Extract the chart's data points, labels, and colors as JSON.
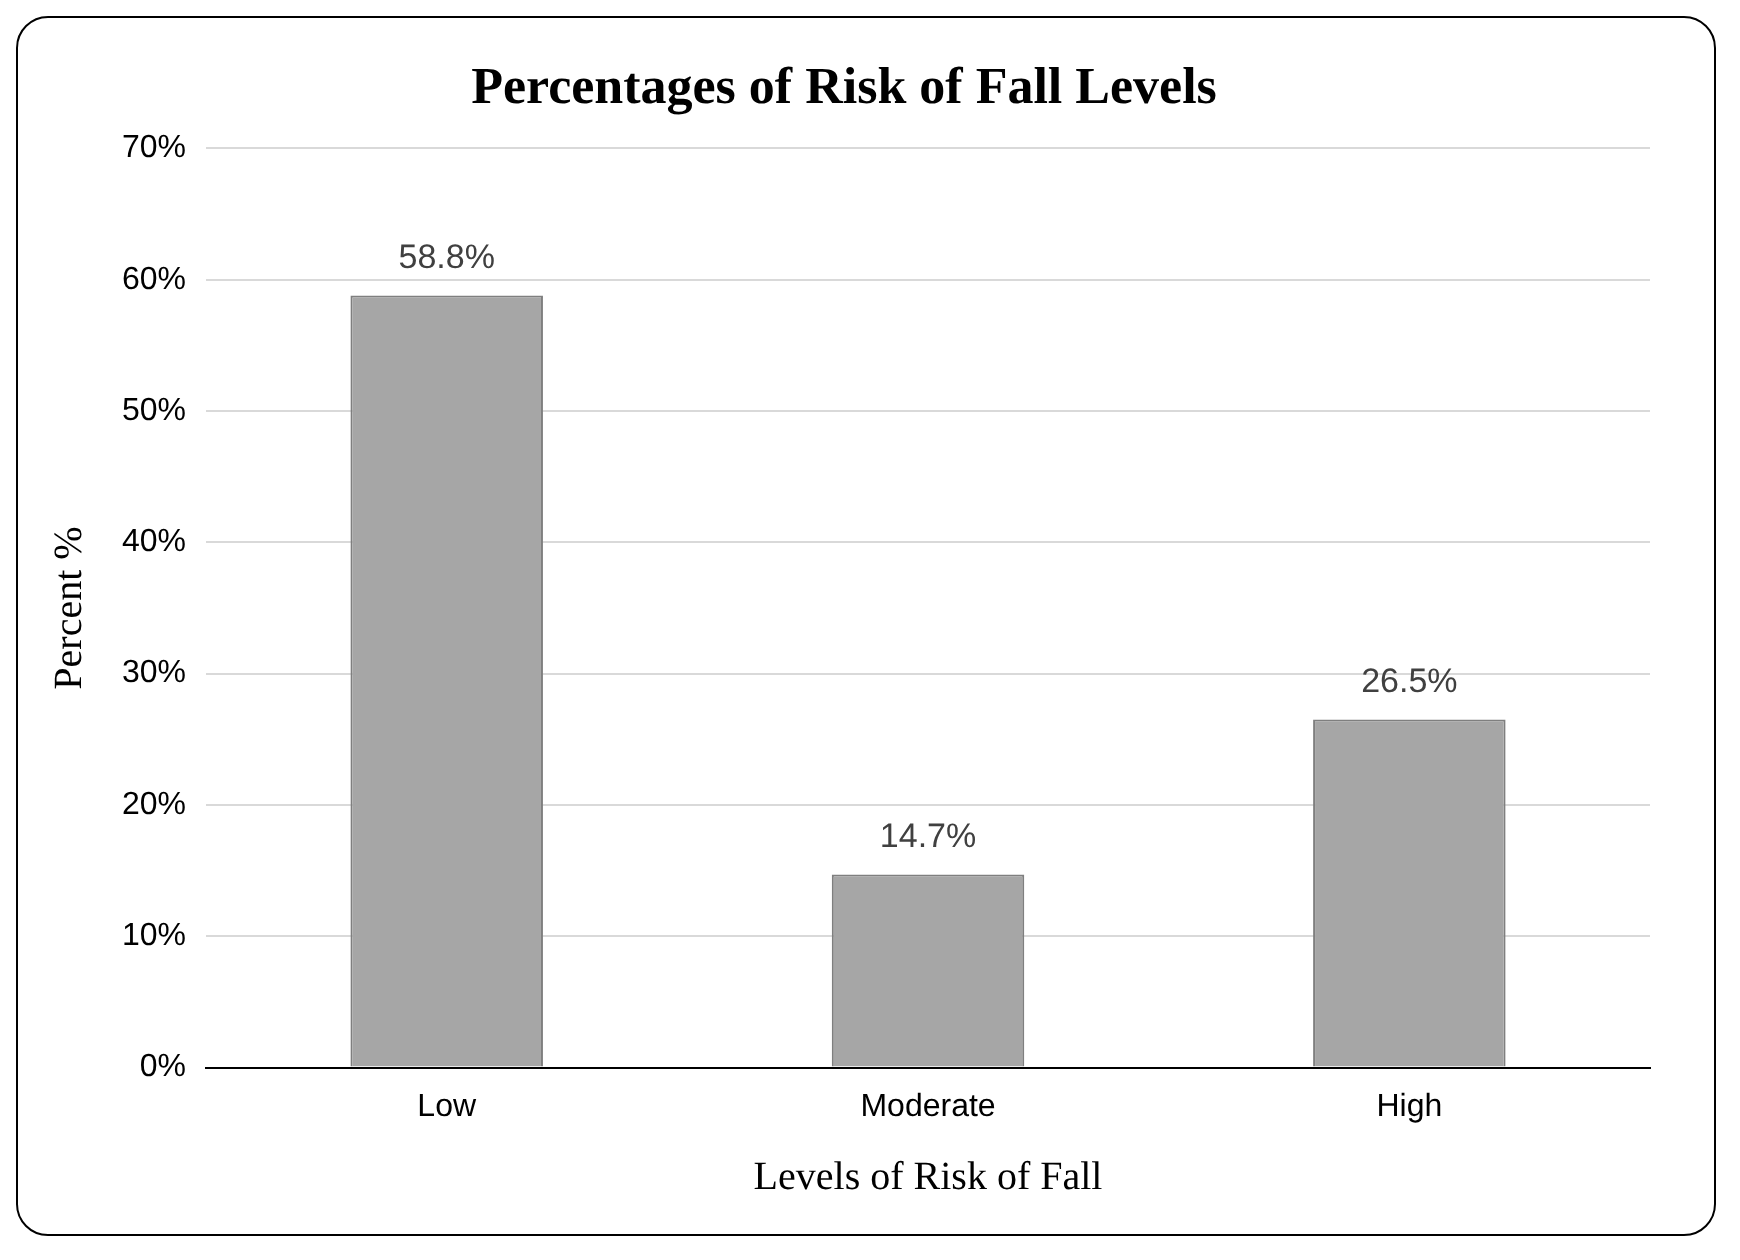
{
  "chart_data": {
    "type": "bar",
    "title": "Percentages of Risk of Fall Levels",
    "xlabel": "Levels of Risk of Fall",
    "ylabel": "Percent %",
    "categories": [
      "Low",
      "Moderate",
      "High"
    ],
    "values": [
      58.8,
      14.7,
      26.5
    ],
    "value_labels": [
      "58.8%",
      "14.7%",
      "26.5%"
    ],
    "color": "#a6a6a6",
    "ylim": [
      0,
      70
    ],
    "yticks": [
      {
        "value": 0,
        "label": "0%"
      },
      {
        "value": 10,
        "label": "10%"
      },
      {
        "value": 20,
        "label": "20%"
      },
      {
        "value": 30,
        "label": "30%"
      },
      {
        "value": 40,
        "label": "40%"
      },
      {
        "value": 50,
        "label": "50%"
      },
      {
        "value": 60,
        "label": "60%"
      },
      {
        "value": 70,
        "label": "70%"
      }
    ],
    "grid": "y",
    "legend": false
  }
}
